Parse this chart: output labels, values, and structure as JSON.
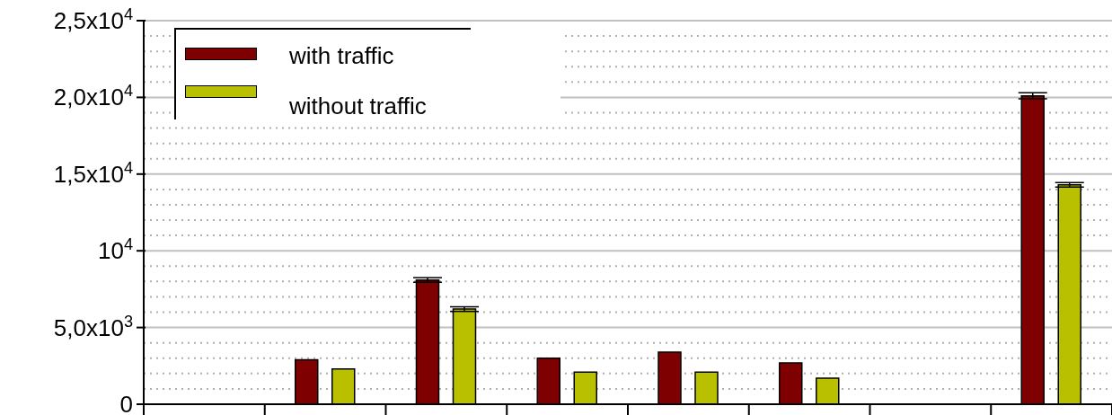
{
  "chart_data": {
    "type": "bar",
    "categories": [
      null,
      null,
      null,
      null,
      null,
      null,
      null,
      null
    ],
    "series": [
      {
        "name": "with traffic",
        "color": "#7f0000",
        "values": [
          null,
          2900,
          8100,
          3000,
          3400,
          2700,
          null,
          20100
        ],
        "errors": [
          null,
          null,
          150,
          null,
          null,
          null,
          null,
          200
        ]
      },
      {
        "name": "without traffic",
        "color": "#b8c000",
        "values": [
          null,
          2300,
          6200,
          2100,
          2100,
          1700,
          null,
          14300
        ],
        "errors": [
          null,
          null,
          150,
          null,
          null,
          null,
          null,
          150
        ]
      }
    ],
    "ylim": [
      0,
      25000
    ],
    "yticks": [
      {
        "value": 0,
        "label": "0"
      },
      {
        "value": 1000,
        "label": null
      },
      {
        "value": 2000,
        "label": null
      },
      {
        "value": 3000,
        "label": null
      },
      {
        "value": 4000,
        "label": null
      },
      {
        "value": 5000,
        "label": "5,0x10$^{3}$"
      },
      {
        "value": 6000,
        "label": null
      },
      {
        "value": 7000,
        "label": null
      },
      {
        "value": 8000,
        "label": null
      },
      {
        "value": 9000,
        "label": null
      },
      {
        "value": 10000,
        "label": "10$^{4}$"
      },
      {
        "value": 11000,
        "label": null
      },
      {
        "value": 12000,
        "label": null
      },
      {
        "value": 13000,
        "label": null
      },
      {
        "value": 14000,
        "label": null
      },
      {
        "value": 15000,
        "label": "1,5x10$^{4}$"
      },
      {
        "value": 16000,
        "label": null
      },
      {
        "value": 17000,
        "label": null
      },
      {
        "value": 18000,
        "label": null
      },
      {
        "value": 19000,
        "label": null
      },
      {
        "value": 20000,
        "label": "2,0x10$^{4}$"
      },
      {
        "value": 21000,
        "label": null
      },
      {
        "value": 22000,
        "label": null
      },
      {
        "value": 23000,
        "label": null
      },
      {
        "value": 24000,
        "label": null
      },
      {
        "value": 25000,
        "label": "2,5x10$^{4}$"
      }
    ],
    "grid": "y",
    "legend": "top left"
  }
}
